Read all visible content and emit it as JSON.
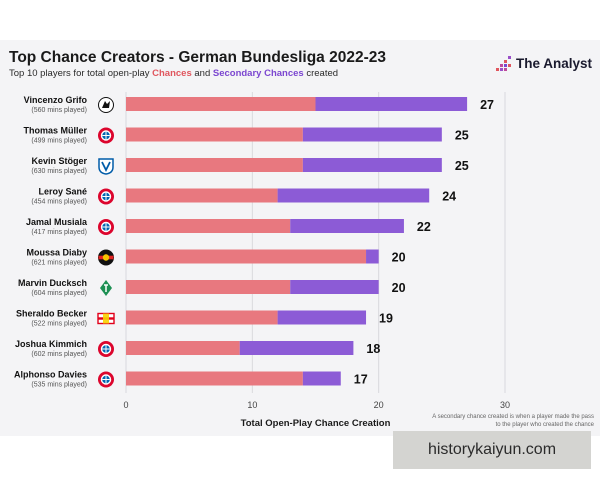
{
  "header": {
    "title": "Top Chance Creators - German Bundesliga 2022-23",
    "subtitle_prefix": "Top 10 players for total open-play",
    "subtitle_chances": "Chances",
    "subtitle_and": "and",
    "subtitle_secondary": "Secondary Chances",
    "subtitle_suffix": "created",
    "logo_text": "The Analyst"
  },
  "footnote": "A secondary chance created is when a player made the pass to the player who created the chance",
  "watermark": "historykaiyun.com",
  "colors": {
    "chances": "#e8787f",
    "secondary": "#8c5bd6",
    "background": "#f4f4f6"
  },
  "chart_data": {
    "type": "bar",
    "orientation": "horizontal",
    "stacked": true,
    "title": "Top Chance Creators - German Bundesliga 2022-23",
    "xlabel": "Total Open-Play Chance Creation",
    "ylabel": "",
    "xlim": [
      0,
      30
    ],
    "xticks": [
      0,
      10,
      20,
      30
    ],
    "grid": true,
    "legend": "subtitle",
    "categories": [
      "Vincenzo Grifo",
      "Thomas Müller",
      "Kevin Stöger",
      "Leroy Sané",
      "Jamal Musiala",
      "Moussa Diaby",
      "Marvin Ducksch",
      "Sheraldo Becker",
      "Joshua Kimmich",
      "Alphonso Davies"
    ],
    "minutes": [
      "(560 mins played)",
      "(499 mins played)",
      "(630 mins played)",
      "(454 mins played)",
      "(417 mins played)",
      "(621 mins played)",
      "(604 mins played)",
      "(522 mins played)",
      "(602 mins played)",
      "(535 mins played)"
    ],
    "clubs": [
      "SC Freiburg",
      "Bayern Munich",
      "VfL Bochum",
      "Bayern Munich",
      "Bayern Munich",
      "Bayer Leverkusen",
      "Werder Bremen",
      "Union Berlin",
      "Bayern Munich",
      "Bayern Munich"
    ],
    "club_icons": [
      "freiburg-crest-icon",
      "bayern-crest-icon",
      "bochum-crest-icon",
      "bayern-crest-icon",
      "bayern-crest-icon",
      "leverkusen-crest-icon",
      "bremen-crest-icon",
      "union-berlin-crest-icon",
      "bayern-crest-icon",
      "bayern-crest-icon"
    ],
    "series": [
      {
        "name": "Chances",
        "values": [
          15,
          14,
          14,
          12,
          13,
          19,
          13,
          12,
          9,
          14
        ]
      },
      {
        "name": "Secondary Chances",
        "values": [
          12,
          11,
          11,
          12,
          9,
          1,
          7,
          7,
          9,
          3
        ]
      }
    ],
    "totals": [
      27,
      25,
      25,
      24,
      22,
      20,
      20,
      19,
      18,
      17
    ]
  }
}
